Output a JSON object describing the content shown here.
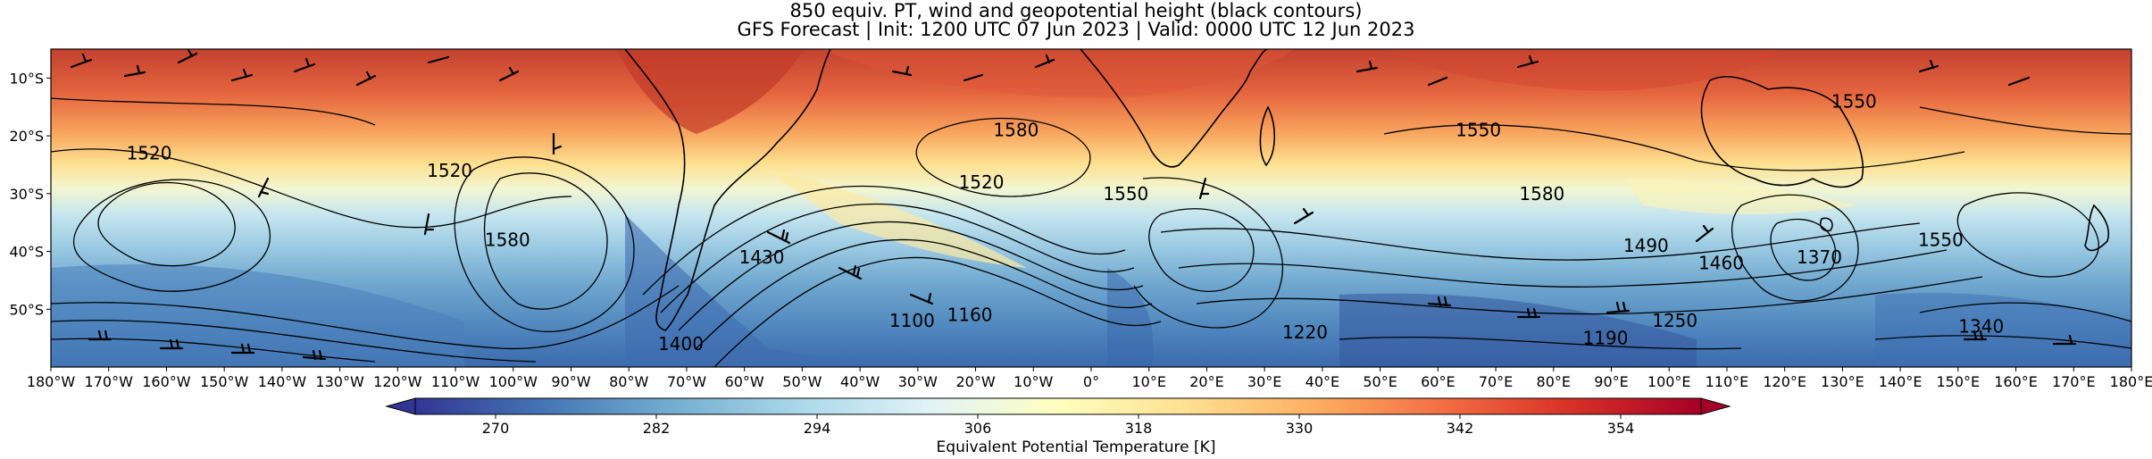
{
  "figure": {
    "title_line1": "850 equiv. PT, wind and geopotential height (black contours)",
    "title_line2": "GFS Forecast | Init: 1200 UTC 07 Jun 2023 | Valid: 0000 UTC 12 Jun 2023"
  },
  "map": {
    "projection": "Plate Carree",
    "lon_range": [
      -180,
      180
    ],
    "lat_range": [
      -60,
      -5
    ],
    "lat_tick_labels": [
      "10°S",
      "20°S",
      "30°S",
      "40°S",
      "50°S"
    ],
    "lon_tick_labels": [
      "180°W",
      "170°W",
      "160°W",
      "150°W",
      "140°W",
      "130°W",
      "120°W",
      "110°W",
      "100°W",
      "90°W",
      "80°W",
      "70°W",
      "60°W",
      "50°W",
      "40°W",
      "30°W",
      "20°W",
      "10°W",
      "0°",
      "10°E",
      "20°E",
      "30°E",
      "40°E",
      "50°E",
      "60°E",
      "70°E",
      "80°E",
      "90°E",
      "100°E",
      "110°E",
      "120°E",
      "130°E",
      "140°E",
      "150°E",
      "160°E",
      "170°E",
      "180°E"
    ],
    "contour_labels": [
      {
        "text": "1520",
        "lon": -163,
        "lat": -23
      },
      {
        "text": "1520",
        "lon": -111,
        "lat": -26
      },
      {
        "text": "1580",
        "lon": -101,
        "lat": -38
      },
      {
        "text": "1430",
        "lon": -57,
        "lat": -41
      },
      {
        "text": "1400",
        "lon": -71,
        "lat": -56
      },
      {
        "text": "1520",
        "lon": -19,
        "lat": -28
      },
      {
        "text": "1580",
        "lon": -13,
        "lat": -19
      },
      {
        "text": "1550",
        "lon": 6,
        "lat": -30
      },
      {
        "text": "1100",
        "lon": -31,
        "lat": -52
      },
      {
        "text": "1160",
        "lon": -21,
        "lat": -51
      },
      {
        "text": "1220",
        "lon": 37,
        "lat": -54
      },
      {
        "text": "1550",
        "lon": 67,
        "lat": -19
      },
      {
        "text": "1580",
        "lon": 78,
        "lat": -30
      },
      {
        "text": "1490",
        "lon": 96,
        "lat": -39
      },
      {
        "text": "1460",
        "lon": 109,
        "lat": -42
      },
      {
        "text": "1190",
        "lon": 89,
        "lat": -55
      },
      {
        "text": "1250",
        "lon": 101,
        "lat": -52
      },
      {
        "text": "1550",
        "lon": 132,
        "lat": -14
      },
      {
        "text": "1370",
        "lon": 126,
        "lat": -41
      },
      {
        "text": "1550",
        "lon": 147,
        "lat": -38
      },
      {
        "text": "1340",
        "lon": 154,
        "lat": -53
      }
    ]
  },
  "colorbar": {
    "label": "Equivalent Potential Temperature [K]",
    "min": 264,
    "max": 360,
    "tick_labels": [
      "270",
      "282",
      "294",
      "306",
      "318",
      "330",
      "342",
      "354"
    ],
    "colormap": "RdYlBu_r",
    "colors": [
      "#313695",
      "#4575b4",
      "#74add1",
      "#abd9e9",
      "#e0f3f8",
      "#ffffbf",
      "#fee090",
      "#fdae61",
      "#f46d43",
      "#d73027",
      "#a50026"
    ]
  }
}
